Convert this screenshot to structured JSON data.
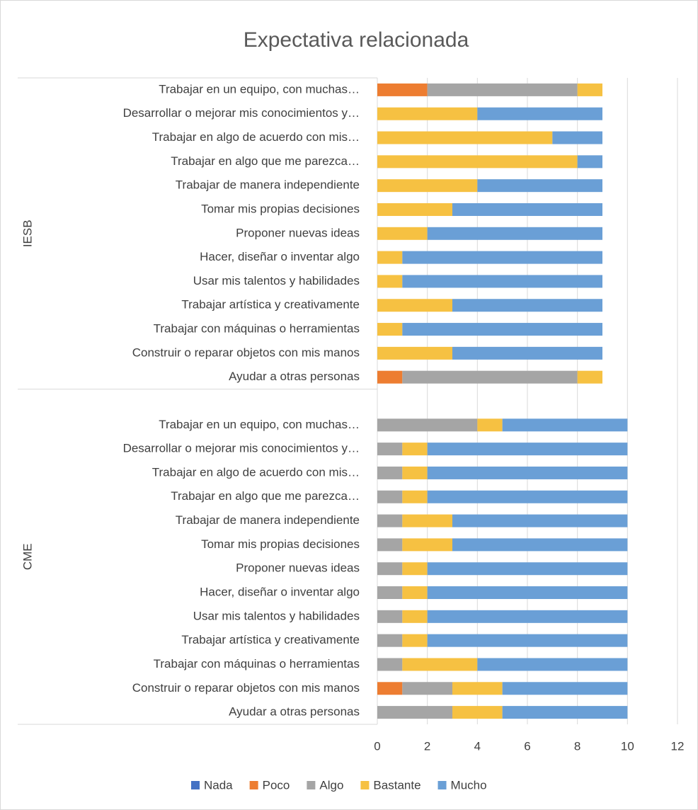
{
  "chart_data": {
    "type": "bar",
    "orientation": "horizontal",
    "stacked": true,
    "title": "Expectativa relacionada",
    "group_labels": [
      "IESB",
      "CME"
    ],
    "categories": [
      "Trabajar en un equipo, con muchas…",
      "Desarrollar o mejorar mis conocimientos y…",
      "Trabajar en algo de acuerdo con mis…",
      "Trabajar en algo que me parezca…",
      "Trabajar de manera independiente",
      "Tomar mis propias decisiones",
      "Proponer nuevas ideas",
      "Hacer, diseñar o inventar algo",
      "Usar mis talentos y habilidades",
      "Trabajar artística y creativamente",
      "Trabajar con máquinas o herramientas",
      "Construir o reparar objetos con mis manos",
      "Ayudar a otras personas",
      null,
      "Trabajar en un equipo, con muchas…",
      "Desarrollar o mejorar mis conocimientos y…",
      "Trabajar en algo de acuerdo con mis…",
      "Trabajar en algo que me parezca…",
      "Trabajar de manera independiente",
      "Tomar mis propias decisiones",
      "Proponer nuevas ideas",
      "Hacer, diseñar o inventar algo",
      "Usar mis talentos y habilidades",
      "Trabajar artística y creativamente",
      "Trabajar con máquinas o herramientas",
      "Construir o reparar objetos con mis manos",
      "Ayudar a otras personas"
    ],
    "series": [
      {
        "name": "Nada",
        "color": "#4472c4",
        "values": [
          0,
          0,
          0,
          0,
          0,
          0,
          0,
          0,
          0,
          0,
          0,
          0,
          0,
          null,
          0,
          0,
          0,
          0,
          0,
          0,
          0,
          0,
          0,
          0,
          0,
          0,
          0
        ]
      },
      {
        "name": "Poco",
        "color": "#ed7d31",
        "values": [
          2,
          0,
          0,
          0,
          0,
          0,
          0,
          0,
          0,
          0,
          0,
          0,
          1,
          null,
          0,
          0,
          0,
          0,
          0,
          0,
          0,
          0,
          0,
          0,
          0,
          1,
          0
        ]
      },
      {
        "name": "Algo",
        "color": "#a5a5a5",
        "values": [
          6,
          0,
          0,
          0,
          0,
          0,
          0,
          0,
          0,
          0,
          0,
          0,
          7,
          null,
          4,
          1,
          1,
          1,
          1,
          1,
          1,
          1,
          1,
          1,
          1,
          2,
          3
        ]
      },
      {
        "name": "Bastante",
        "color": "#f6c142",
        "values": [
          1,
          4,
          7,
          8,
          4,
          3,
          2,
          1,
          1,
          3,
          1,
          3,
          1,
          null,
          1,
          1,
          1,
          1,
          2,
          2,
          1,
          1,
          1,
          1,
          3,
          2,
          2
        ]
      },
      {
        "name": "Mucho",
        "color": "#6a9fd6",
        "values": [
          0,
          5,
          2,
          1,
          5,
          6,
          7,
          8,
          8,
          6,
          8,
          6,
          0,
          null,
          5,
          8,
          8,
          8,
          7,
          7,
          8,
          8,
          8,
          8,
          6,
          5,
          5
        ]
      }
    ],
    "xlim": [
      0,
      12
    ],
    "xticks": [
      0,
      2,
      4,
      6,
      8,
      10,
      12
    ],
    "grid": true,
    "legend": "bottom"
  }
}
